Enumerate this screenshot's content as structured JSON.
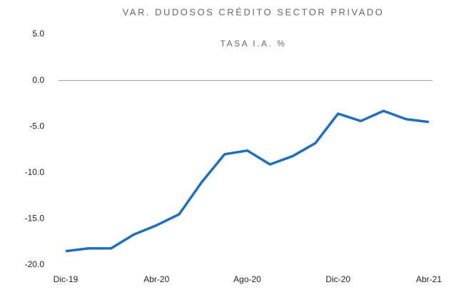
{
  "chart_data": {
    "type": "line",
    "title": "VAR. DUDOSOS CRÉDITO SECTOR PRIVADO",
    "subtitle": "TASA I.A. %",
    "categories": [
      "Dic-19",
      null,
      null,
      null,
      "Abr-20",
      null,
      null,
      null,
      "Ago-20",
      null,
      null,
      null,
      "Dic-20",
      null,
      null,
      null,
      "Abr-21"
    ],
    "series": [
      {
        "name": "Var. dudosos",
        "color": "#1f6fbf",
        "values": [
          -18.5,
          -18.2,
          -18.2,
          -16.7,
          -15.7,
          -14.5,
          -11.0,
          -8.0,
          -7.6,
          -9.1,
          -8.2,
          -6.8,
          -3.6,
          -4.4,
          -3.3,
          -4.2,
          -4.5
        ]
      }
    ],
    "ylim": [
      -20,
      5
    ],
    "yticks": [
      {
        "value": -20,
        "label": "-20.0"
      },
      {
        "value": -15,
        "label": "-15.0"
      },
      {
        "value": -10,
        "label": "-10.0"
      },
      {
        "value": -5,
        "label": "-5.0"
      },
      {
        "value": 0,
        "label": "0.0"
      },
      {
        "value": 5,
        "label": "5.0"
      }
    ],
    "zero_line": true
  }
}
